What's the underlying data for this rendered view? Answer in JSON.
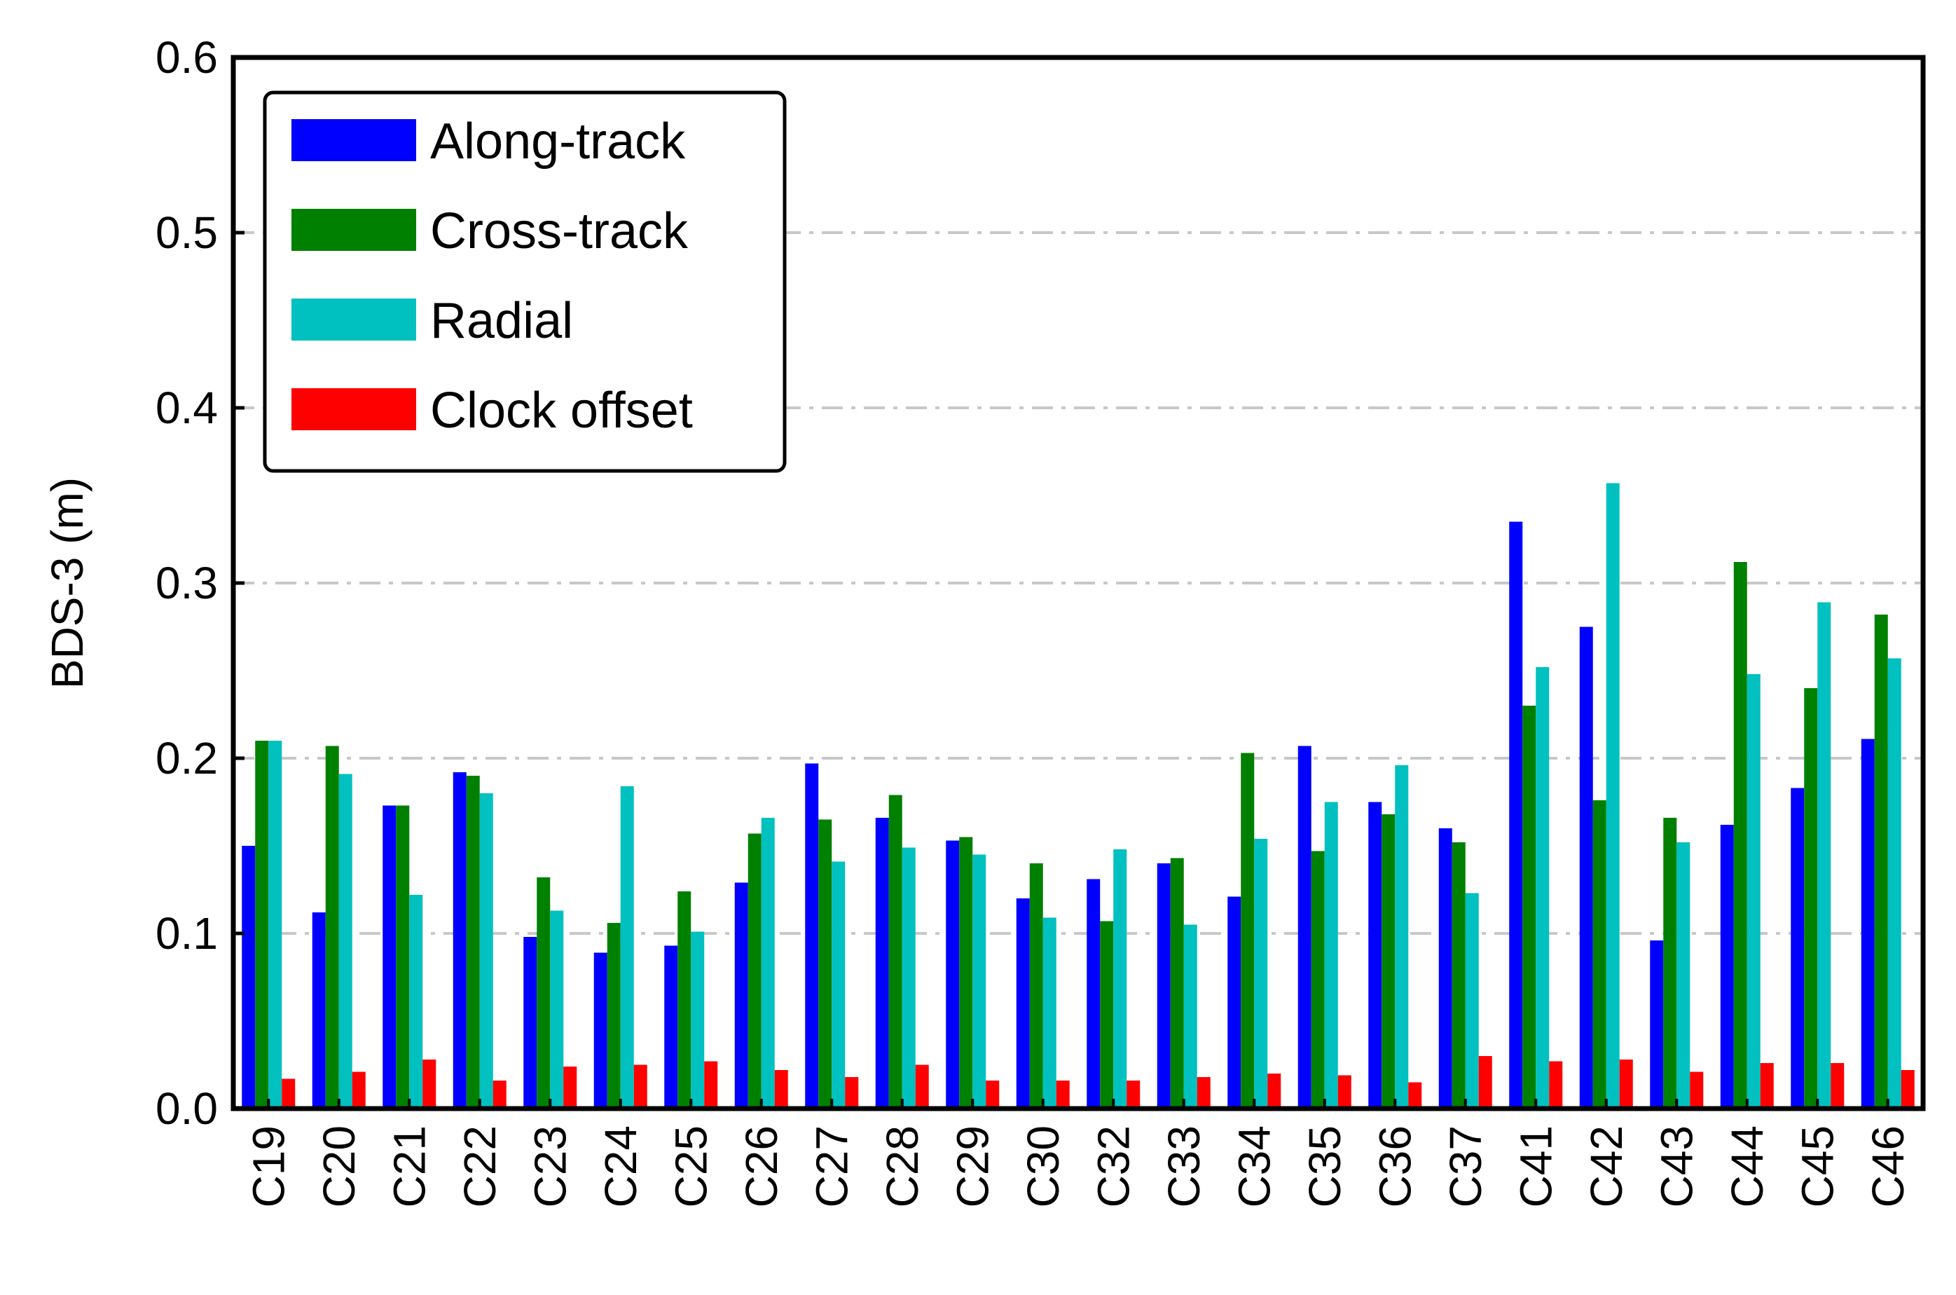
{
  "chart_data": {
    "type": "bar",
    "title": "",
    "xlabel": "",
    "ylabel": "BDS-3 (m)",
    "ylim": [
      0,
      0.6
    ],
    "yticks": [
      "0.0",
      "0.1",
      "0.2",
      "0.3",
      "0.4",
      "0.5",
      "0.6"
    ],
    "grid": "horizontal dash-dot",
    "legend_position": "top-left",
    "categories": [
      "C19",
      "C20",
      "C21",
      "C22",
      "C23",
      "C24",
      "C25",
      "C26",
      "C27",
      "C28",
      "C29",
      "C30",
      "C32",
      "C33",
      "C34",
      "C35",
      "C36",
      "C37",
      "C41",
      "C42",
      "C43",
      "C44",
      "C45",
      "C46"
    ],
    "series": [
      {
        "name": "Along-track",
        "color": "#0000ff",
        "values": [
          0.15,
          0.112,
          0.173,
          0.192,
          0.098,
          0.089,
          0.093,
          0.129,
          0.197,
          0.166,
          0.153,
          0.12,
          0.131,
          0.14,
          0.121,
          0.207,
          0.175,
          0.16,
          0.335,
          0.275,
          0.096,
          0.162,
          0.183,
          0.211
        ]
      },
      {
        "name": "Cross-track",
        "color": "#008000",
        "values": [
          0.21,
          0.207,
          0.173,
          0.19,
          0.132,
          0.106,
          0.124,
          0.157,
          0.165,
          0.179,
          0.155,
          0.14,
          0.107,
          0.143,
          0.203,
          0.147,
          0.168,
          0.152,
          0.23,
          0.176,
          0.166,
          0.312,
          0.24,
          0.282
        ]
      },
      {
        "name": "Radial",
        "color": "#00c0c0",
        "values": [
          0.21,
          0.191,
          0.122,
          0.18,
          0.113,
          0.184,
          0.101,
          0.166,
          0.141,
          0.149,
          0.145,
          0.109,
          0.148,
          0.105,
          0.154,
          0.175,
          0.196,
          0.123,
          0.252,
          0.357,
          0.152,
          0.248,
          0.289,
          0.257
        ]
      },
      {
        "name": "Clock offset",
        "color": "#ff0000",
        "values": [
          0.017,
          0.021,
          0.028,
          0.016,
          0.024,
          0.025,
          0.027,
          0.022,
          0.018,
          0.025,
          0.016,
          0.016,
          0.016,
          0.018,
          0.02,
          0.019,
          0.015,
          0.03,
          0.027,
          0.028,
          0.021,
          0.026,
          0.026,
          0.022
        ]
      }
    ]
  }
}
